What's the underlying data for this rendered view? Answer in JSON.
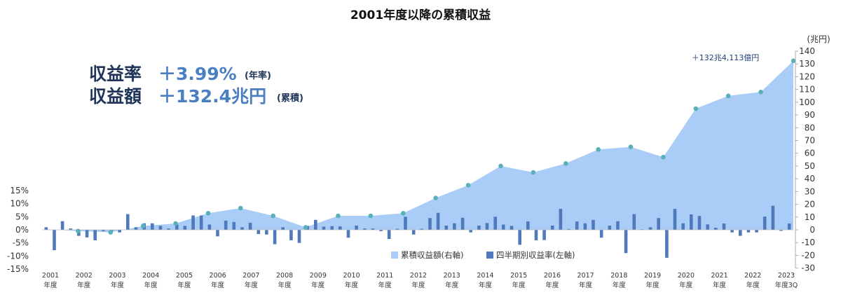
{
  "title": "2001年度以降の累積収益",
  "summary": {
    "rate_label": "収益率",
    "rate_value": "＋3.99%",
    "rate_note": "(年率)",
    "amount_label": "収益額",
    "amount_value": "＋132.4兆円",
    "amount_note": "(累積)"
  },
  "right_unit": "(兆円)",
  "latest_note": "＋132兆4,113億円",
  "legend": {
    "cumulative": "累積収益額(右軸)",
    "quarterly": "四半期別収益率(左軸)"
  },
  "colors": {
    "area": "#a9cdf7",
    "bar": "#4f79ba",
    "marker": "#5ab0b8",
    "title": "#111111"
  },
  "chart_data": {
    "type": "bar+area",
    "title": "2001年度以降の累積収益",
    "left_axis": {
      "ylim": [
        -15,
        15
      ],
      "ticks": [
        15,
        10,
        5,
        0,
        -5,
        -10,
        -15
      ],
      "tick_labels": [
        "15%",
        "10%",
        "5%",
        "0%",
        "-5%",
        "-10%",
        "-15%"
      ]
    },
    "right_axis": {
      "unit": "(兆円)",
      "ylim": [
        -30,
        140
      ],
      "ticks": [
        140,
        130,
        120,
        110,
        100,
        90,
        80,
        70,
        60,
        50,
        40,
        30,
        20,
        10,
        0,
        -10,
        -20,
        -30
      ]
    },
    "x_labels": [
      "2001\n年度",
      "2002\n年度",
      "2003\n年度",
      "2004\n年度",
      "2005\n年度",
      "2006\n年度",
      "2007\n年度",
      "2008\n年度",
      "2009\n年度",
      "2010\n年度",
      "2011\n年度",
      "2012\n年度",
      "2013\n年度",
      "2014\n年度",
      "2015\n年度",
      "2016\n年度",
      "2017\n年度",
      "2018\n年度",
      "2019\n年度",
      "2020\n年度",
      "2021\n年度",
      "2022\n年度",
      "2023\n年度3Q"
    ],
    "series": [
      {
        "name": "四半期別収益率(左軸)",
        "type": "bar",
        "axis": "left",
        "unit": "%",
        "values": [
          1.0,
          -7.8,
          3.3,
          0.5,
          -2.3,
          -2.9,
          -4.0,
          -0.5,
          -0.5,
          -1.0,
          6.0,
          1.0,
          2.5,
          2.5,
          1.5,
          0.5,
          2.0,
          1.5,
          5.5,
          5.5,
          2.0,
          -2.5,
          3.5,
          3.0,
          1.0,
          2.7,
          -1.6,
          -1.8,
          -5.5,
          1.0,
          -4.0,
          -5.0,
          1.5,
          3.8,
          1.2,
          1.4,
          1.3,
          -3.0,
          1.6,
          0.5,
          0.5,
          -0.5,
          -3.5,
          0.4,
          5.0,
          -1.8,
          0.4,
          4.5,
          6.5,
          1.6,
          2.5,
          4.6,
          -1.0,
          1.6,
          2.6,
          5.0,
          2.0,
          1.5,
          -5.7,
          3.2,
          -4.0,
          -3.9,
          1.6,
          8.0,
          0.3,
          3.2,
          2.5,
          3.8,
          -3.0,
          1.6,
          3.3,
          -8.9,
          6.0,
          0.2,
          1.0,
          4.5,
          -10.7,
          8.0,
          2.5,
          5.9,
          5.3,
          2.1,
          0.8,
          2.4,
          -1.0,
          -2.3,
          -1.0,
          -1.0,
          5.1,
          9.2,
          -0.4,
          2.4
        ]
      },
      {
        "name": "累積収益額(右軸)",
        "type": "area",
        "axis": "right",
        "unit": "兆円",
        "points": [
          {
            "x": "2001年度",
            "y": 0.5
          },
          {
            "x": "2002年度",
            "y": -1
          },
          {
            "x": "2003年度",
            "y": -2
          },
          {
            "x": "2004年度",
            "y": 3
          },
          {
            "x": "2005年度",
            "y": 5
          },
          {
            "x": "2006年度",
            "y": 13
          },
          {
            "x": "2007年度",
            "y": 17
          },
          {
            "x": "2008年度",
            "y": 11
          },
          {
            "x": "2009年度",
            "y": 2
          },
          {
            "x": "2010年度",
            "y": 11
          },
          {
            "x": "2011年度",
            "y": 11
          },
          {
            "x": "2012年度",
            "y": 13
          },
          {
            "x": "2013年度",
            "y": 25
          },
          {
            "x": "2014年度",
            "y": 35
          },
          {
            "x": "2015年度",
            "y": 50
          },
          {
            "x": "2016年度",
            "y": 45
          },
          {
            "x": "2017年度",
            "y": 52
          },
          {
            "x": "2018年度",
            "y": 63
          },
          {
            "x": "2019年度",
            "y": 65
          },
          {
            "x": "2020年度",
            "y": 57
          },
          {
            "x": "2021年度",
            "y": 95
          },
          {
            "x": "2022年度",
            "y": 105
          },
          {
            "x": "2023年度3Q",
            "y": 108
          },
          {
            "x": "2023年度3Q",
            "y": 132.4
          }
        ]
      }
    ]
  }
}
